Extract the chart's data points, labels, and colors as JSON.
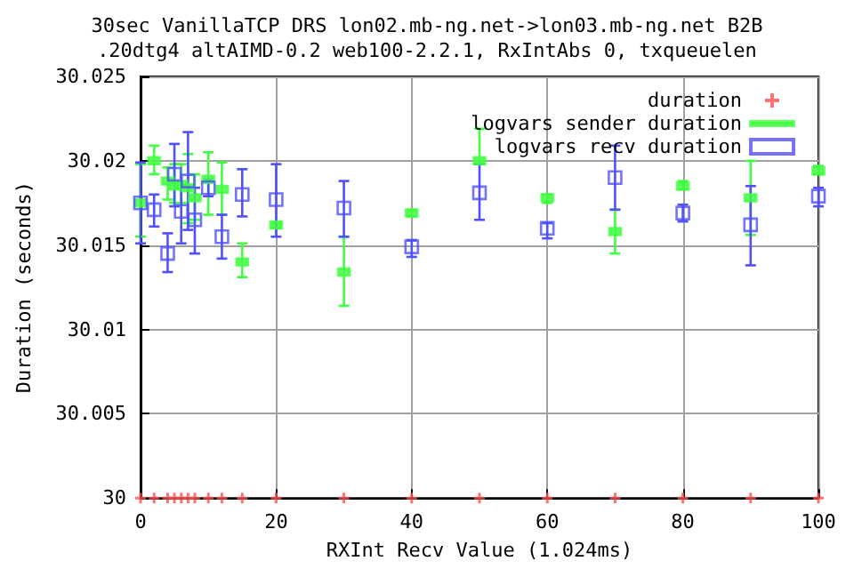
{
  "chart_data": {
    "type": "scatter",
    "title": "30sec VanillaTCP DRS lon02.mb-ng.net->lon03.mb-ng.net B2B",
    "subtitle": ".20dtg4 altAIMD-0.2 web100-2.2.1, RxIntAbs 0, txqueuelen",
    "xlabel": "RXInt Recv Value (1.024ms)",
    "ylabel": "Duration (seconds)",
    "xlim": [
      0,
      100
    ],
    "xticks": [
      0,
      20,
      40,
      60,
      80,
      100
    ],
    "ylim": [
      30,
      30.025
    ],
    "yticks": [
      30,
      30.005,
      30.01,
      30.015,
      30.02,
      30.025
    ],
    "grid": true,
    "legend": "top right",
    "x": [
      0,
      2,
      4,
      5,
      6,
      7,
      8,
      10,
      12,
      15,
      20,
      30,
      40,
      50,
      60,
      70,
      80,
      90,
      100
    ],
    "series": [
      {
        "name": "duration",
        "color": "#ff5050",
        "marker": "cross",
        "values": [
          30,
          30,
          30,
          30,
          30,
          30,
          30,
          30,
          30,
          30,
          30,
          30,
          30,
          30,
          30,
          30,
          30,
          30,
          30
        ]
      },
      {
        "name": "logvars sender duration",
        "color": "#40ff40",
        "values": [
          30.0175,
          30.02,
          30.0188,
          30.0185,
          30.0186,
          30.0184,
          30.0178,
          30.0189,
          30.0183,
          30.014,
          30.0162,
          30.0134,
          30.0169,
          30.02,
          30.0178,
          30.0158,
          30.0185,
          30.0178,
          30.0194
        ],
        "errors": [
          [
            30.0155,
            30.0198
          ],
          [
            30.0192,
            30.0209
          ],
          [
            30.0177,
            30.0196
          ],
          [
            30.0175,
            30.0198
          ],
          [
            30.0175,
            30.0198
          ],
          [
            30.0163,
            30.0204
          ],
          [
            30.0165,
            30.0192
          ],
          [
            30.0168,
            30.0205
          ],
          [
            30.0168,
            30.0199
          ],
          [
            30.0131,
            30.0151
          ],
          [
            30.016,
            30.0163
          ],
          [
            30.0114,
            30.0155
          ],
          [
            30.0167,
            30.0171
          ],
          [
            30.0198,
            30.0219
          ],
          [
            30.0175,
            30.018
          ],
          [
            30.0145,
            30.0171
          ],
          [
            30.0183,
            30.0188
          ],
          [
            30.0156,
            30.02
          ],
          [
            30.0192,
            30.0197
          ]
        ]
      },
      {
        "name": "logvars recv duration",
        "color": "#5050ff",
        "marker": "square",
        "values": [
          30.0175,
          30.0171,
          30.0145,
          30.0192,
          30.017,
          30.0188,
          30.0165,
          30.0184,
          30.0155,
          30.018,
          30.0177,
          30.0172,
          30.0149,
          30.0181,
          30.016,
          30.019,
          30.0169,
          30.0162,
          30.0179
        ],
        "errors": [
          [
            30.0151,
            30.0199
          ],
          [
            30.0161,
            30.018
          ],
          [
            30.0134,
            30.0157
          ],
          [
            30.0173,
            30.021
          ],
          [
            30.0151,
            30.0185
          ],
          [
            30.0159,
            30.0217
          ],
          [
            30.0145,
            30.0184
          ],
          [
            30.0179,
            30.0189
          ],
          [
            30.0142,
            30.0168
          ],
          [
            30.0167,
            30.0195
          ],
          [
            30.0155,
            30.0198
          ],
          [
            30.0155,
            30.0188
          ],
          [
            30.0143,
            30.0153
          ],
          [
            30.0165,
            30.0198
          ],
          [
            30.0154,
            30.0163
          ],
          [
            30.0171,
            30.0209
          ],
          [
            30.0164,
            30.0174
          ],
          [
            30.0138,
            30.0185
          ],
          [
            30.0173,
            30.0184
          ]
        ]
      }
    ]
  }
}
